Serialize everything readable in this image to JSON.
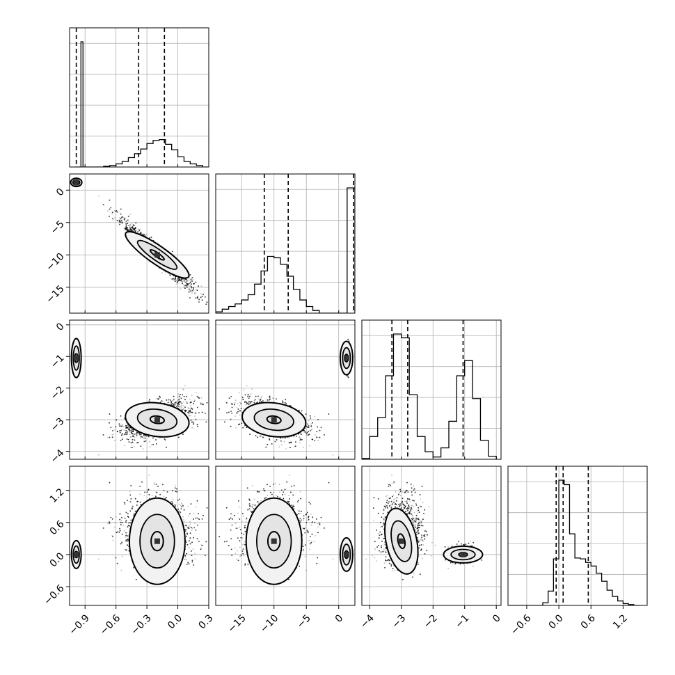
{
  "chart_data": {
    "type": "corner",
    "n_params": 4,
    "params": [
      {
        "range": [
          -1.05,
          0.3
        ],
        "ticks": [
          -0.9,
          -0.6,
          -0.3,
          0.0,
          0.3
        ],
        "tick_labels": [
          "−0.9",
          "−0.6",
          "−0.3",
          "0.0",
          "0.3"
        ]
      },
      {
        "range": [
          -19,
          2.5
        ],
        "ticks": [
          -15,
          -10,
          -5,
          0
        ],
        "tick_labels": [
          "−15",
          "−10",
          "−5",
          "0"
        ]
      },
      {
        "range": [
          -4.25,
          0.15
        ],
        "ticks": [
          -4,
          -3,
          -2,
          -1,
          0
        ],
        "tick_labels": [
          "−4",
          "−3",
          "−2",
          "−1",
          "0"
        ]
      },
      {
        "range": [
          -0.95,
          1.65
        ],
        "ticks": [
          -0.6,
          0.0,
          0.6,
          1.2
        ],
        "tick_labels": [
          "−0.6",
          "0.0",
          "0.6",
          "1.2"
        ]
      }
    ],
    "histograms": [
      {
        "bins": [
          -1.0,
          -0.98,
          -0.96,
          -0.94,
          -0.92,
          -0.9,
          -0.78,
          -0.72,
          -0.66,
          -0.6,
          -0.54,
          -0.48,
          -0.42,
          -0.36,
          -0.3,
          -0.24,
          -0.18,
          -0.12,
          -0.06,
          0.0,
          0.06,
          0.12,
          0.18,
          0.24,
          0.3
        ],
        "counts": [
          0,
          0,
          0,
          160,
          0,
          0,
          0,
          1,
          2,
          4,
          7,
          12,
          17,
          23,
          30,
          34,
          35,
          29,
          22,
          13,
          7,
          4,
          2,
          0
        ],
        "quantiles": [
          -0.985,
          -0.38,
          -0.13
        ]
      },
      {
        "bins": [
          -19,
          -18,
          -17,
          -16,
          -15,
          -14,
          -13,
          -12,
          -11,
          -10,
          -9,
          -8,
          -7,
          -6,
          -5,
          -4,
          -3,
          0.7,
          1.3,
          2.5
        ],
        "counts": [
          1,
          3,
          5,
          7,
          10,
          14,
          22,
          32,
          43,
          42,
          37,
          28,
          18,
          10,
          5,
          2,
          0,
          0,
          95
        ],
        "quantiles": [
          -11.5,
          -7.8,
          2.3
        ]
      },
      {
        "bins": [
          -4.25,
          -4.0,
          -3.75,
          -3.5,
          -3.25,
          -3.0,
          -2.75,
          -2.5,
          -2.25,
          -2.0,
          -1.75,
          -1.5,
          -1.25,
          -1.0,
          -0.75,
          -0.5,
          -0.25,
          0.0
        ],
        "counts": [
          1,
          30,
          55,
          110,
          165,
          160,
          85,
          30,
          10,
          3,
          15,
          50,
          110,
          130,
          80,
          25,
          4
        ],
        "quantiles": [
          -3.3,
          -2.8,
          -1.05
        ]
      },
      {
        "bins": [
          -0.95,
          -0.3,
          -0.2,
          -0.1,
          0.0,
          0.1,
          0.2,
          0.3,
          0.4,
          0.5,
          0.6,
          0.7,
          0.8,
          0.9,
          1.0,
          1.1,
          1.2,
          1.3,
          1.4,
          1.5
        ],
        "counts": [
          0,
          3,
          16,
          52,
          140,
          135,
          80,
          53,
          52,
          48,
          44,
          36,
          27,
          17,
          10,
          5,
          2,
          1,
          0
        ],
        "quantiles": [
          -0.05,
          0.08,
          0.55
        ]
      }
    ],
    "modes": [
      [
        -0.985,
        1.2,
        -1.05,
        0.0
      ],
      [
        -0.2,
        -10.0,
        -3.0,
        0.25
      ]
    ]
  }
}
